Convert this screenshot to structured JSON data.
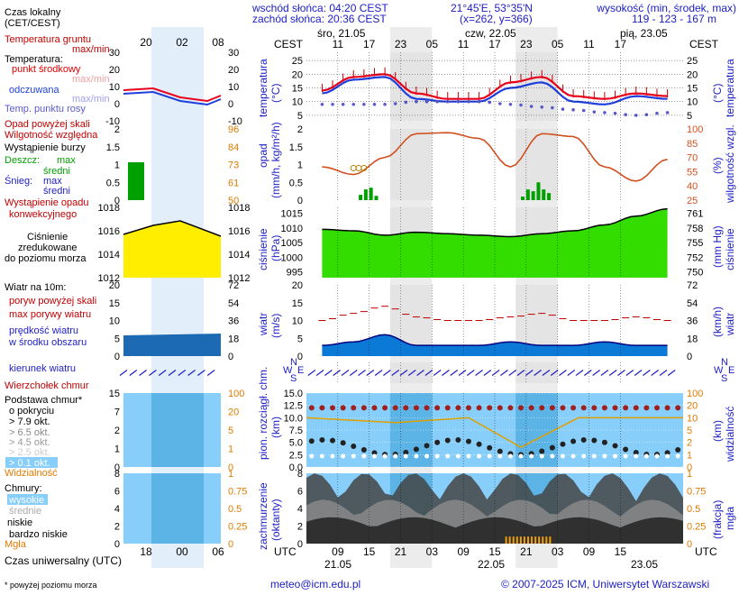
{
  "header": {
    "sunrise": "wschód słońca: 04:20 CEST",
    "sunset": "zachód słońca: 20:36 CEST",
    "coords": "21°45'E, 53°35'N",
    "grid": "(x=262, y=366)",
    "elev_title": "wysokość (min, środek, max)",
    "elev_values": "119 - 123 - 167 m"
  },
  "legend": {
    "local_time": "Czas lokalny",
    "local_time2": "(CET/CEST)",
    "legend_hours": [
      "20",
      "02",
      "08"
    ],
    "ground_temp": "Temperatura gruntu",
    "max_min": "max/min",
    "temperature": "Temperatura:",
    "mid_point": "punkt środkowy",
    "max_min2": "max/min",
    "perceived": "odczuwana",
    "max_min3": "max/min",
    "dew": "Temp. punktu rosy",
    "precip_above": "Opad powyżej skali",
    "humidity": "Wilgotność względna",
    "storm": "Wystąpienie burzy",
    "rain": "Deszcz:",
    "max": "max",
    "avg": "średni",
    "snow": "Śnieg:",
    "max2": "max",
    "avg2": "średni",
    "conv": "Wystąpienie opadu",
    "conv2": "konwekcyjnego",
    "pressure": "Ciśnienie",
    "pressure2": "zredukowane",
    "pressure3": "do poziomu morza",
    "wind": "Wiatr na 10m:",
    "gust_above": "poryw powyżej skali",
    "max_gust": "max porywy wiatru",
    "wind_speed": "prędkość wiatru",
    "wind_area": "w środku obszaru",
    "wind_dir": "kierunek wiatru",
    "cb": "Wierzchołek chmur",
    "cloud_base": "Podstawa chmur*",
    "cloud_base2": "o pokryciu",
    "okt1": "> 7.9 okt.",
    "okt2": "> 6.5 okt.",
    "okt3": "> 4.5 okt.",
    "okt4": "> 2.5 okt.",
    "okt5": "> 0.1 okt.",
    "visibility": "Widzialność",
    "clouds": "Chmury:",
    "high": "wysokie",
    "mid": "średnie",
    "low": "niskie",
    "very_low": "bardzo niskie",
    "fog": "Mgła",
    "utc": "Czas uniwersalny (UTC)",
    "utc_hours": [
      "18",
      "00",
      "06"
    ],
    "footnote": "* powyżej poziomu morza"
  },
  "panels": {
    "cest": "CEST",
    "utc": "UTC",
    "days": [
      "śro, 21.05",
      "czw, 22.05",
      "pią, 23.05"
    ],
    "utc_days": [
      "21.05",
      "22.05",
      "23.05"
    ],
    "cest_hours": [
      "11",
      "17",
      "23",
      "05",
      "11",
      "17",
      "23",
      "05",
      "11",
      "17"
    ],
    "utc_hours": [
      "09",
      "15",
      "21",
      "03",
      "09",
      "15",
      "21",
      "03",
      "09",
      "15"
    ],
    "temp_left": "temperatura",
    "temp_left_unit": "(°C)",
    "temp_right": "temperatura",
    "temp_right_unit": "(°C)",
    "precip_left": "opad",
    "precip_left_unit": "(mm/h, kg/m²/h)",
    "hum_right": "wilgotność wzgl.",
    "hum_right_unit": "(%)",
    "pres_left": "ciśnienie",
    "pres_left_unit": "(hPa)",
    "pres_right": "ciśnienie",
    "pres_right_unit": "(mm Hg)",
    "wind_left": "wiatr",
    "wind_left_unit": "(m/s)",
    "wind_right": "wiatr",
    "wind_right_unit": "(km/h)",
    "cloud_left": "pion. rozciągł. chm.",
    "cloud_left_unit": "(km)",
    "vis_right": "widzialność",
    "vis_right_unit": "(km)",
    "cov_left": "zachmurzenie",
    "cov_left_unit": "(oktanty)",
    "fog_right": "mgła",
    "fog_right_unit": "(frakcja)",
    "compass": [
      "N",
      "S",
      "W",
      "E"
    ]
  },
  "footer": {
    "email": "meteo@icm.edu.pl",
    "copyright": "© 2007-2025 ICM, Uniwersytet Warszawski"
  },
  "colors": {
    "temp": "#e8001c",
    "perceived": "#1f3fdc",
    "dew": "#5a5acd",
    "humidity": "#d2501e",
    "pressure_fill": "#33dd00",
    "wind_fill": "#0a7ad6",
    "night": "#e4e4e4"
  },
  "chart_data": [
    {
      "type": "line",
      "title": "temperatura",
      "ylabel": "(°C)",
      "x_hours_utc": [
        6,
        12,
        18,
        24,
        30,
        36,
        42,
        48,
        54,
        60,
        66,
        72
      ],
      "yticks": [
        5,
        10,
        15,
        20,
        25
      ],
      "ylim": [
        3,
        28
      ],
      "series": [
        {
          "name": "temperatura",
          "values": [
            14,
            19,
            20,
            13,
            11,
            11,
            17,
            19,
            12,
            11,
            13,
            12
          ]
        },
        {
          "name": "odczuwana",
          "values": [
            13,
            18,
            19,
            11,
            10,
            10,
            15,
            17,
            10,
            9,
            12,
            11
          ]
        },
        {
          "name": "Temp. punktu rosy",
          "values": [
            9,
            9,
            9,
            10,
            10,
            10,
            9,
            8,
            7,
            6,
            5,
            6
          ]
        }
      ]
    },
    {
      "type": "bar",
      "title": "opad",
      "ylabel": "(mm/h, kg/m²/h)",
      "yticks": [
        0,
        0.5,
        1,
        1.5,
        2
      ],
      "ylim": [
        0,
        2
      ],
      "y2ticks": [
        25,
        40,
        55,
        70,
        85,
        100
      ],
      "y2label": "wilgotność wzgl. (%)",
      "series": [
        {
          "name": "Wilgotność względna",
          "values": [
            60,
            52,
            70,
            95,
            96,
            90,
            60,
            95,
            92,
            60,
            45,
            68
          ]
        }
      ]
    },
    {
      "type": "area",
      "title": "ciśnienie",
      "ylabel": "(hPa)",
      "yticks": [
        995,
        1000,
        1005,
        1010,
        1015
      ],
      "ylim": [
        993,
        1017
      ],
      "y2ticks": [
        750,
        752,
        755,
        758,
        761
      ],
      "y2label": "(mm Hg)",
      "series": [
        {
          "name": "ciśnienie",
          "values": [
            1009.5,
            1009,
            1007.5,
            1008.5,
            1008,
            1007.5,
            1007,
            1008,
            1009,
            1011,
            1014,
            1016.5
          ]
        }
      ]
    },
    {
      "type": "area",
      "title": "wiatr",
      "ylabel": "(m/s)",
      "yticks": [
        0,
        5,
        10,
        15,
        20
      ],
      "ylim": [
        0,
        20
      ],
      "y2ticks": [
        0,
        18,
        36,
        54,
        72
      ],
      "y2label": "(km/h)",
      "series": [
        {
          "name": "prędkość wiatru",
          "values": [
            3,
            4,
            6,
            3,
            3,
            3,
            4,
            3,
            3,
            4,
            3,
            3
          ]
        },
        {
          "name": "max porywy wiatru",
          "values": [
            10,
            12,
            14,
            11,
            10,
            10,
            11,
            12,
            10,
            10,
            11,
            10
          ]
        }
      ]
    },
    {
      "type": "scatter",
      "title": "pion. rozciągł. chm.",
      "ylabel": "(km)",
      "yticks": [
        0,
        2.5,
        5,
        7.5,
        10,
        12.5,
        15
      ],
      "ylim": [
        0,
        15
      ],
      "y2ticks": [
        0,
        1,
        2,
        5,
        10,
        20,
        100
      ],
      "y2label": "widzialność (km)"
    },
    {
      "type": "area",
      "title": "zachmurzenie",
      "ylabel": "(oktanty)",
      "yticks": [
        0,
        2,
        4,
        6,
        8
      ],
      "ylim": [
        0,
        8
      ],
      "y2ticks": [
        0,
        0.25,
        0.5,
        0.75,
        1
      ],
      "y2label": "mgła (frakcja)"
    }
  ]
}
